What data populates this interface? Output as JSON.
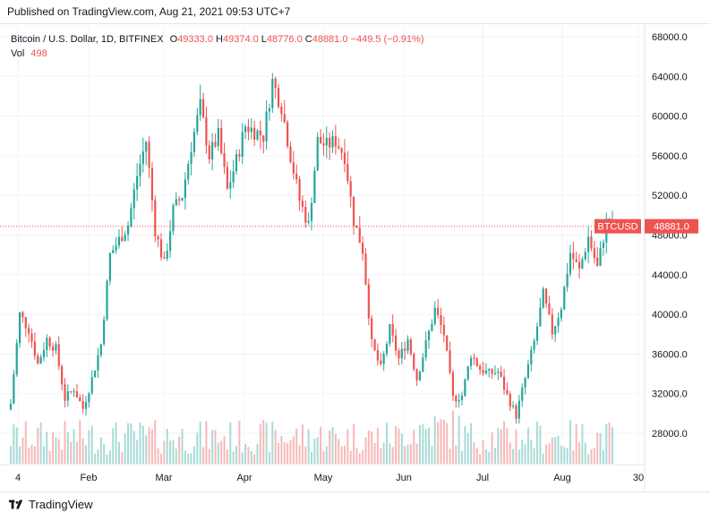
{
  "header": {
    "published": "Published on TradingView.com, Aug 21, 2021 09:53 UTC+7"
  },
  "legend": {
    "symbol": "Bitcoin / U.S. Dollar, 1D, BITFINEX",
    "o_label": "O",
    "o_value": "49333.0",
    "h_label": "H",
    "h_value": "49374.0",
    "l_label": "L",
    "l_value": "48776.0",
    "c_label": "C",
    "c_value": "48881.0",
    "change": "−449.5 (−0.91%)",
    "vol_label": "Vol",
    "vol_value": "498"
  },
  "price_tag": {
    "ticker": "BTCUSD",
    "price": "48881.0",
    "price_value": 48881
  },
  "footer": {
    "brand": "TradingView"
  },
  "colors": {
    "up": "#26a69a",
    "down": "#ef5350",
    "grid": "#f0f3fa",
    "axis_text": "#131722"
  },
  "chart_data": {
    "type": "candlestick",
    "y_ticks": [
      "28000.0",
      "32000.0",
      "36000.0",
      "40000.0",
      "44000.0",
      "48000.0",
      "52000.0",
      "56000.0",
      "60000.0",
      "64000.0",
      "68000.0"
    ],
    "x_ticks": [
      "4",
      "Feb",
      "Mar",
      "Apr",
      "May",
      "Jun",
      "Jul",
      "Aug",
      "30"
    ],
    "ylim": [
      26000,
      69000
    ],
    "series": [
      {
        "date": "Jan 4",
        "close": 31000
      },
      {
        "date": "Jan 8",
        "close": 40000
      },
      {
        "date": "Jan 10",
        "close": 38500
      },
      {
        "date": "Jan 12",
        "close": 35000
      },
      {
        "date": "Jan 15",
        "close": 37500
      },
      {
        "date": "Jan 18",
        "close": 36500
      },
      {
        "date": "Jan 21",
        "close": 31500
      },
      {
        "date": "Jan 24",
        "close": 32500
      },
      {
        "date": "Jan 27",
        "close": 30500
      },
      {
        "date": "Jan 31",
        "close": 33500
      },
      {
        "date": "Feb 4",
        "close": 37000
      },
      {
        "date": "Feb 8",
        "close": 46000
      },
      {
        "date": "Feb 12",
        "close": 47500
      },
      {
        "date": "Feb 16",
        "close": 49000
      },
      {
        "date": "Feb 19",
        "close": 54000
      },
      {
        "date": "Feb 21",
        "close": 57500
      },
      {
        "date": "Feb 23",
        "close": 48500
      },
      {
        "date": "Feb 28",
        "close": 45000
      },
      {
        "date": "Mar 3",
        "close": 50500
      },
      {
        "date": "Mar 8",
        "close": 52000
      },
      {
        "date": "Mar 11",
        "close": 57000
      },
      {
        "date": "Mar 13",
        "close": 61000
      },
      {
        "date": "Mar 16",
        "close": 56000
      },
      {
        "date": "Mar 20",
        "close": 58000
      },
      {
        "date": "Mar 24",
        "close": 52500
      },
      {
        "date": "Mar 28",
        "close": 55500
      },
      {
        "date": "Apr 1",
        "close": 59000
      },
      {
        "date": "Apr 5",
        "close": 58500
      },
      {
        "date": "Apr 9",
        "close": 58000
      },
      {
        "date": "Apr 13",
        "close": 63500
      },
      {
        "date": "Apr 16",
        "close": 61000
      },
      {
        "date": "Apr 18",
        "close": 56000
      },
      {
        "date": "Apr 22",
        "close": 51500
      },
      {
        "date": "Apr 25",
        "close": 49000
      },
      {
        "date": "Apr 30",
        "close": 57500
      },
      {
        "date": "May 3",
        "close": 57000
      },
      {
        "date": "May 7",
        "close": 57500
      },
      {
        "date": "May 10",
        "close": 56000
      },
      {
        "date": "May 12",
        "close": 49500
      },
      {
        "date": "May 15",
        "close": 46500
      },
      {
        "date": "May 19",
        "close": 37000
      },
      {
        "date": "May 23",
        "close": 34500
      },
      {
        "date": "May 26",
        "close": 38500
      },
      {
        "date": "May 30",
        "close": 35500
      },
      {
        "date": "Jun 3",
        "close": 37500
      },
      {
        "date": "Jun 7",
        "close": 33500
      },
      {
        "date": "Jun 10",
        "close": 37000
      },
      {
        "date": "Jun 14",
        "close": 40500
      },
      {
        "date": "Jun 17",
        "close": 38000
      },
      {
        "date": "Jun 21",
        "close": 31500
      },
      {
        "date": "Jun 25",
        "close": 31800
      },
      {
        "date": "Jun 29",
        "close": 36000
      },
      {
        "date": "Jul 3",
        "close": 34500
      },
      {
        "date": "Jul 7",
        "close": 34000
      },
      {
        "date": "Jul 11",
        "close": 34200
      },
      {
        "date": "Jul 15",
        "close": 31800
      },
      {
        "date": "Jul 20",
        "close": 29800
      },
      {
        "date": "Jul 23",
        "close": 33500
      },
      {
        "date": "Jul 26",
        "close": 37200
      },
      {
        "date": "Jul 30",
        "close": 42000
      },
      {
        "date": "Aug 3",
        "close": 38200
      },
      {
        "date": "Aug 6",
        "close": 40800
      },
      {
        "date": "Aug 9",
        "close": 46200
      },
      {
        "date": "Aug 12",
        "close": 44400
      },
      {
        "date": "Aug 14",
        "close": 47800
      },
      {
        "date": "Aug 17",
        "close": 44700
      },
      {
        "date": "Aug 20",
        "close": 49300
      },
      {
        "date": "Aug 21",
        "close": 48881
      }
    ]
  }
}
